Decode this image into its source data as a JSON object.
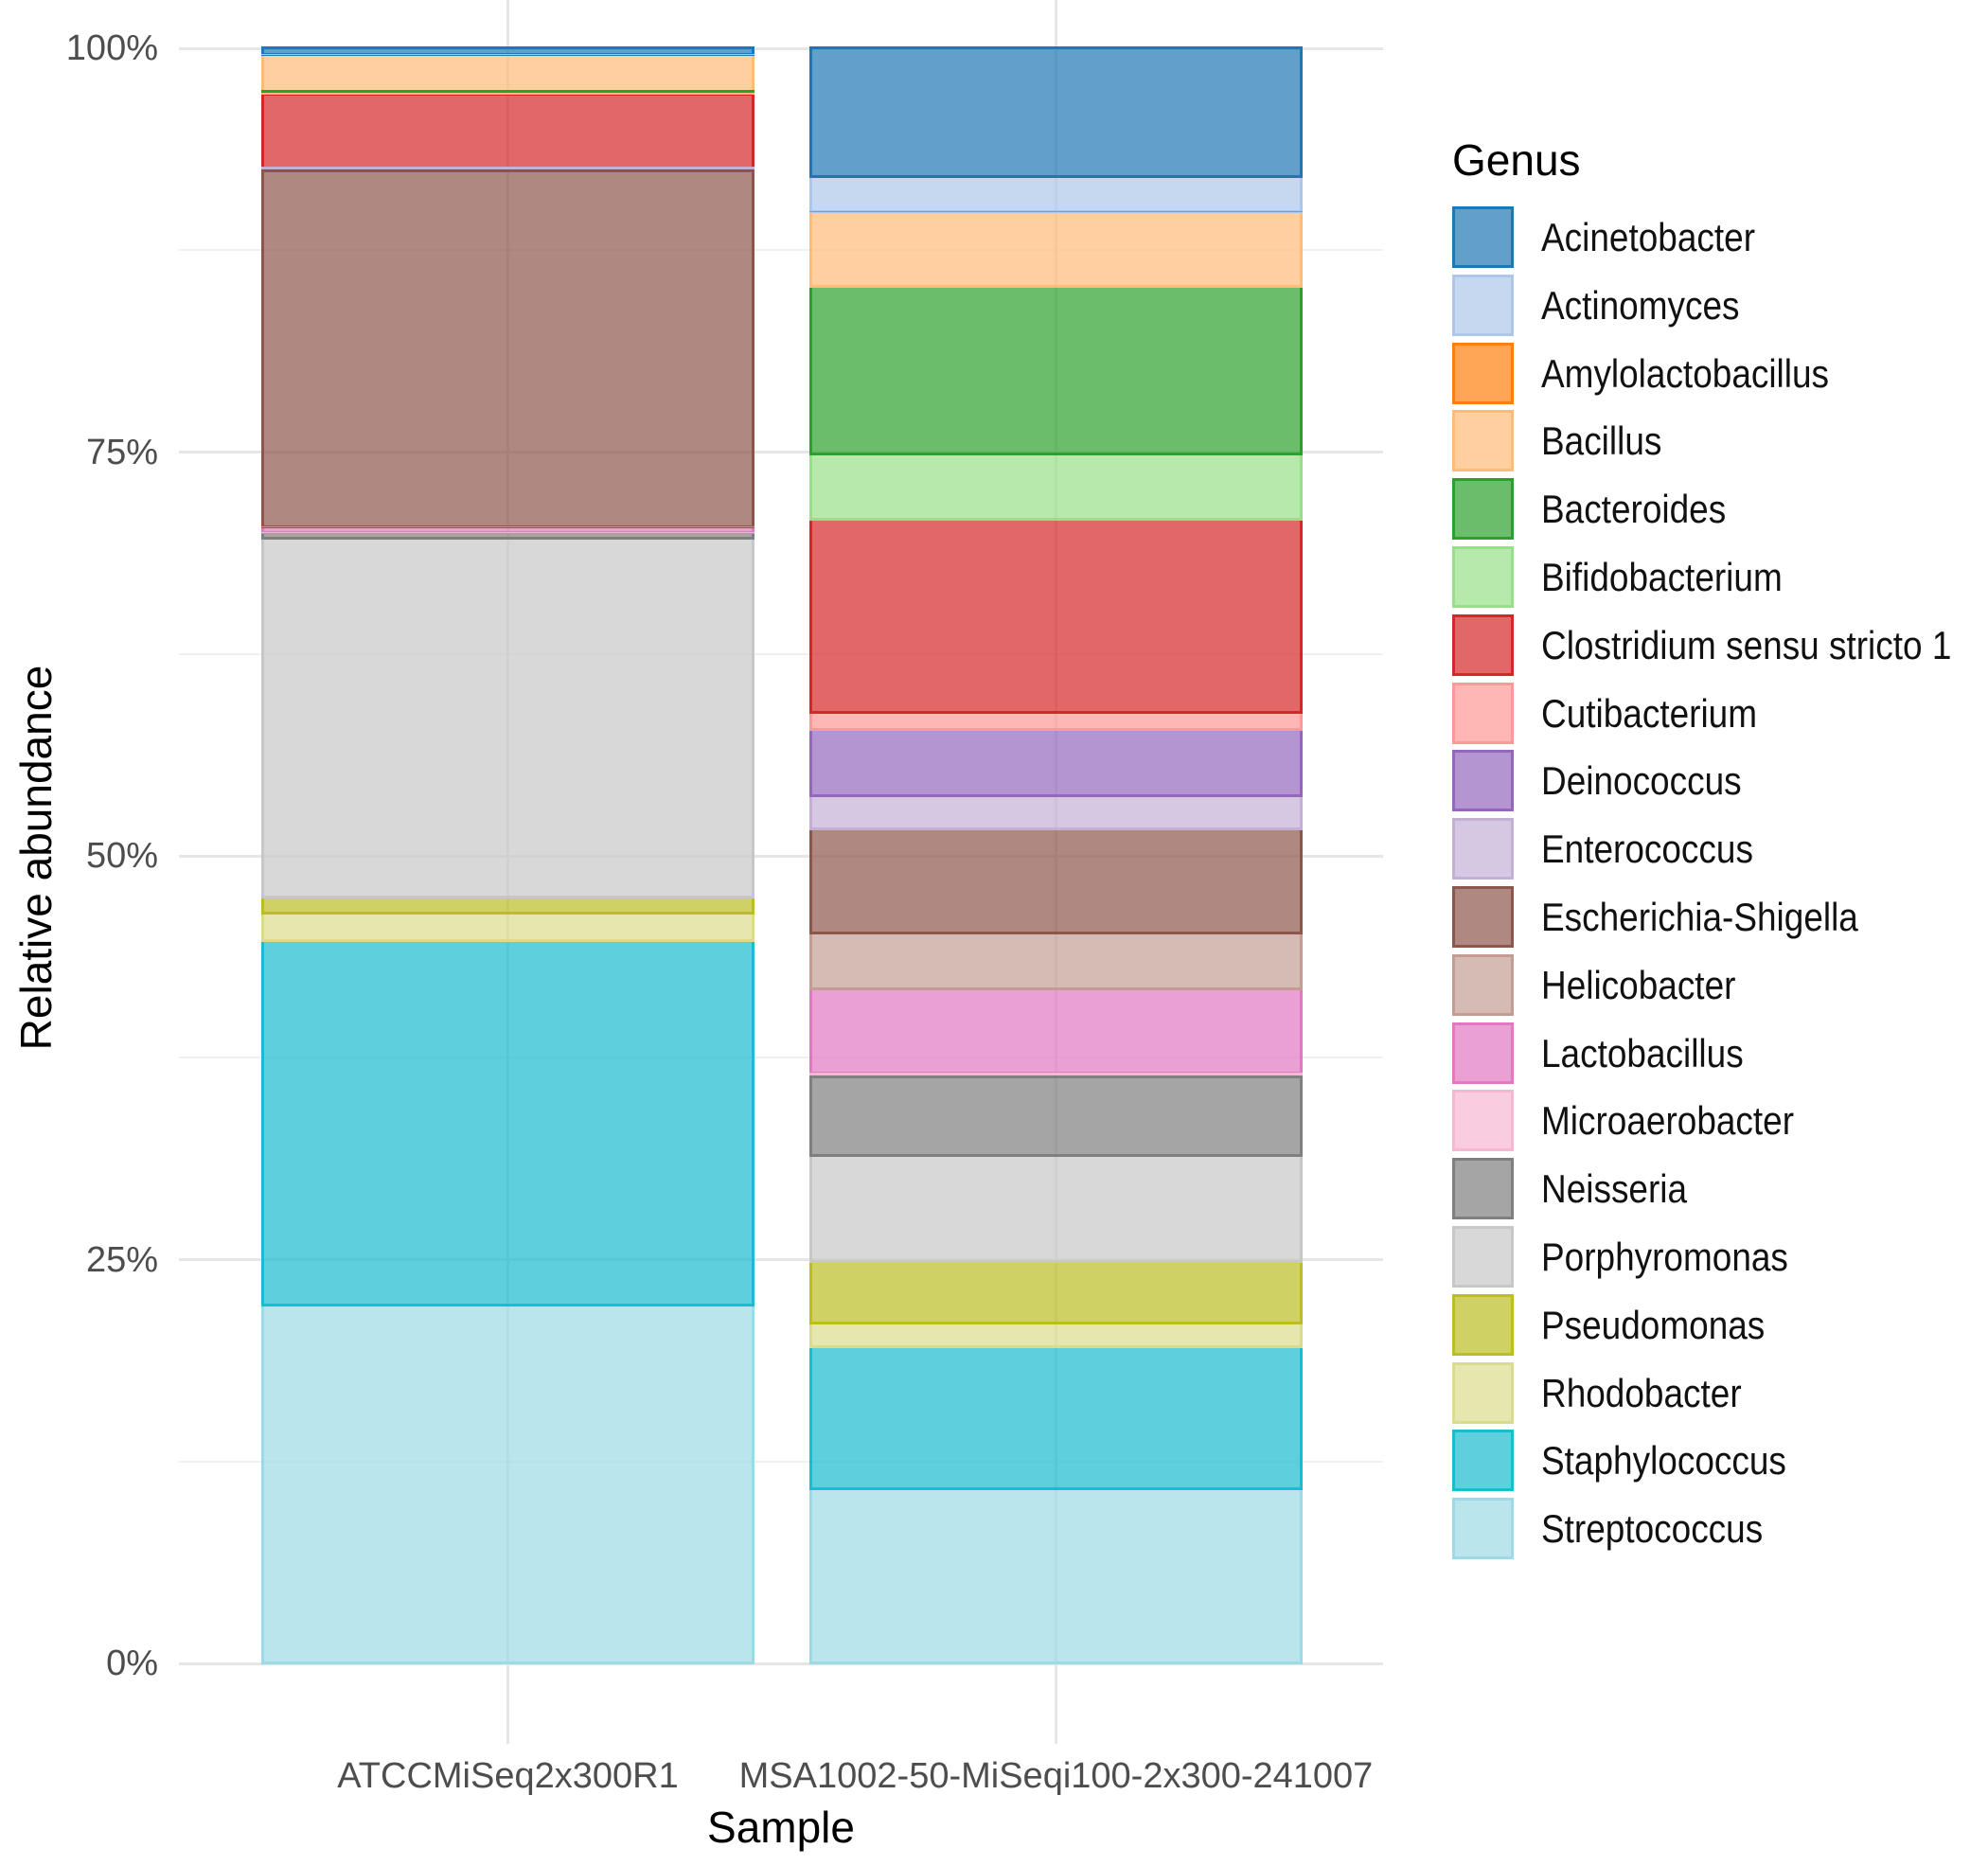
{
  "chart_data": {
    "type": "bar",
    "stacked": true,
    "orientation": "vertical",
    "xlabel": "Sample",
    "ylabel": "Relative abundance",
    "legend_title": "Genus",
    "legend_position": "right",
    "ylim": [
      0,
      100
    ],
    "y_ticks": [
      0,
      25,
      50,
      75,
      100
    ],
    "y_tick_labels": [
      "0%",
      "25%",
      "50%",
      "75%",
      "100%"
    ],
    "y_minor_gridlines": [
      12.5,
      37.5,
      62.5,
      87.5
    ],
    "grid": true,
    "fill_alpha": 0.7,
    "categories": [
      "ATCCMiSeq2x300R1",
      "MSA1002-50-MiSeqi100-2x300-241007"
    ],
    "series": [
      {
        "name": "Acinetobacter",
        "color": "#1f77b4",
        "values": [
          0.37,
          7.95
        ]
      },
      {
        "name": "Actinomyces",
        "color": "#aec7e8",
        "values": [
          0.02,
          2.19
        ]
      },
      {
        "name": "Amylolactobacillus",
        "color": "#ff7f0e",
        "values": [
          0.02,
          0.02
        ]
      },
      {
        "name": "Bacillus",
        "color": "#ffbb78",
        "values": [
          2.31,
          4.61
        ]
      },
      {
        "name": "Bacteroides",
        "color": "#2ca02c",
        "values": [
          0.13,
          10.35
        ]
      },
      {
        "name": "Bifidobacterium",
        "color": "#98df8a",
        "values": [
          0.02,
          4.04
        ]
      },
      {
        "name": "Clostridium sensu stricto 1",
        "color": "#d62728",
        "values": [
          4.6,
          11.98
        ]
      },
      {
        "name": "Cutibacterium",
        "color": "#ff9896",
        "values": [
          0.02,
          1.06
        ]
      },
      {
        "name": "Deinococcus",
        "color": "#9467bd",
        "values": [
          0.02,
          4.1
        ]
      },
      {
        "name": "Enterococcus",
        "color": "#c5b0d5",
        "values": [
          0.1,
          2.07
        ]
      },
      {
        "name": "Escherichia-Shigella",
        "color": "#8c564b",
        "values": [
          22.04,
          6.45
        ]
      },
      {
        "name": "Helicobacter",
        "color": "#c49c94",
        "values": [
          0.02,
          3.46
        ]
      },
      {
        "name": "Lactobacillus",
        "color": "#e377c2",
        "values": [
          0.33,
          5.22
        ]
      },
      {
        "name": "Microaerobacter",
        "color": "#f7b6d2",
        "values": [
          0.02,
          0.18
        ]
      },
      {
        "name": "Neisseria",
        "color": "#7f7f7f",
        "values": [
          0.35,
          4.91
        ]
      },
      {
        "name": "Porphyromonas",
        "color": "#c7c7c7",
        "values": [
          22.17,
          6.56
        ]
      },
      {
        "name": "Pseudomonas",
        "color": "#bcbd22",
        "values": [
          1.04,
          3.77
        ]
      },
      {
        "name": "Rhodobacter",
        "color": "#dbdb8d",
        "values": [
          1.7,
          1.52
        ]
      },
      {
        "name": "Staphylococcus",
        "color": "#17becf",
        "values": [
          22.57,
          8.78
        ]
      },
      {
        "name": "Streptococcus",
        "color": "#9edae5",
        "values": [
          22.16,
          10.8
        ]
      }
    ]
  }
}
